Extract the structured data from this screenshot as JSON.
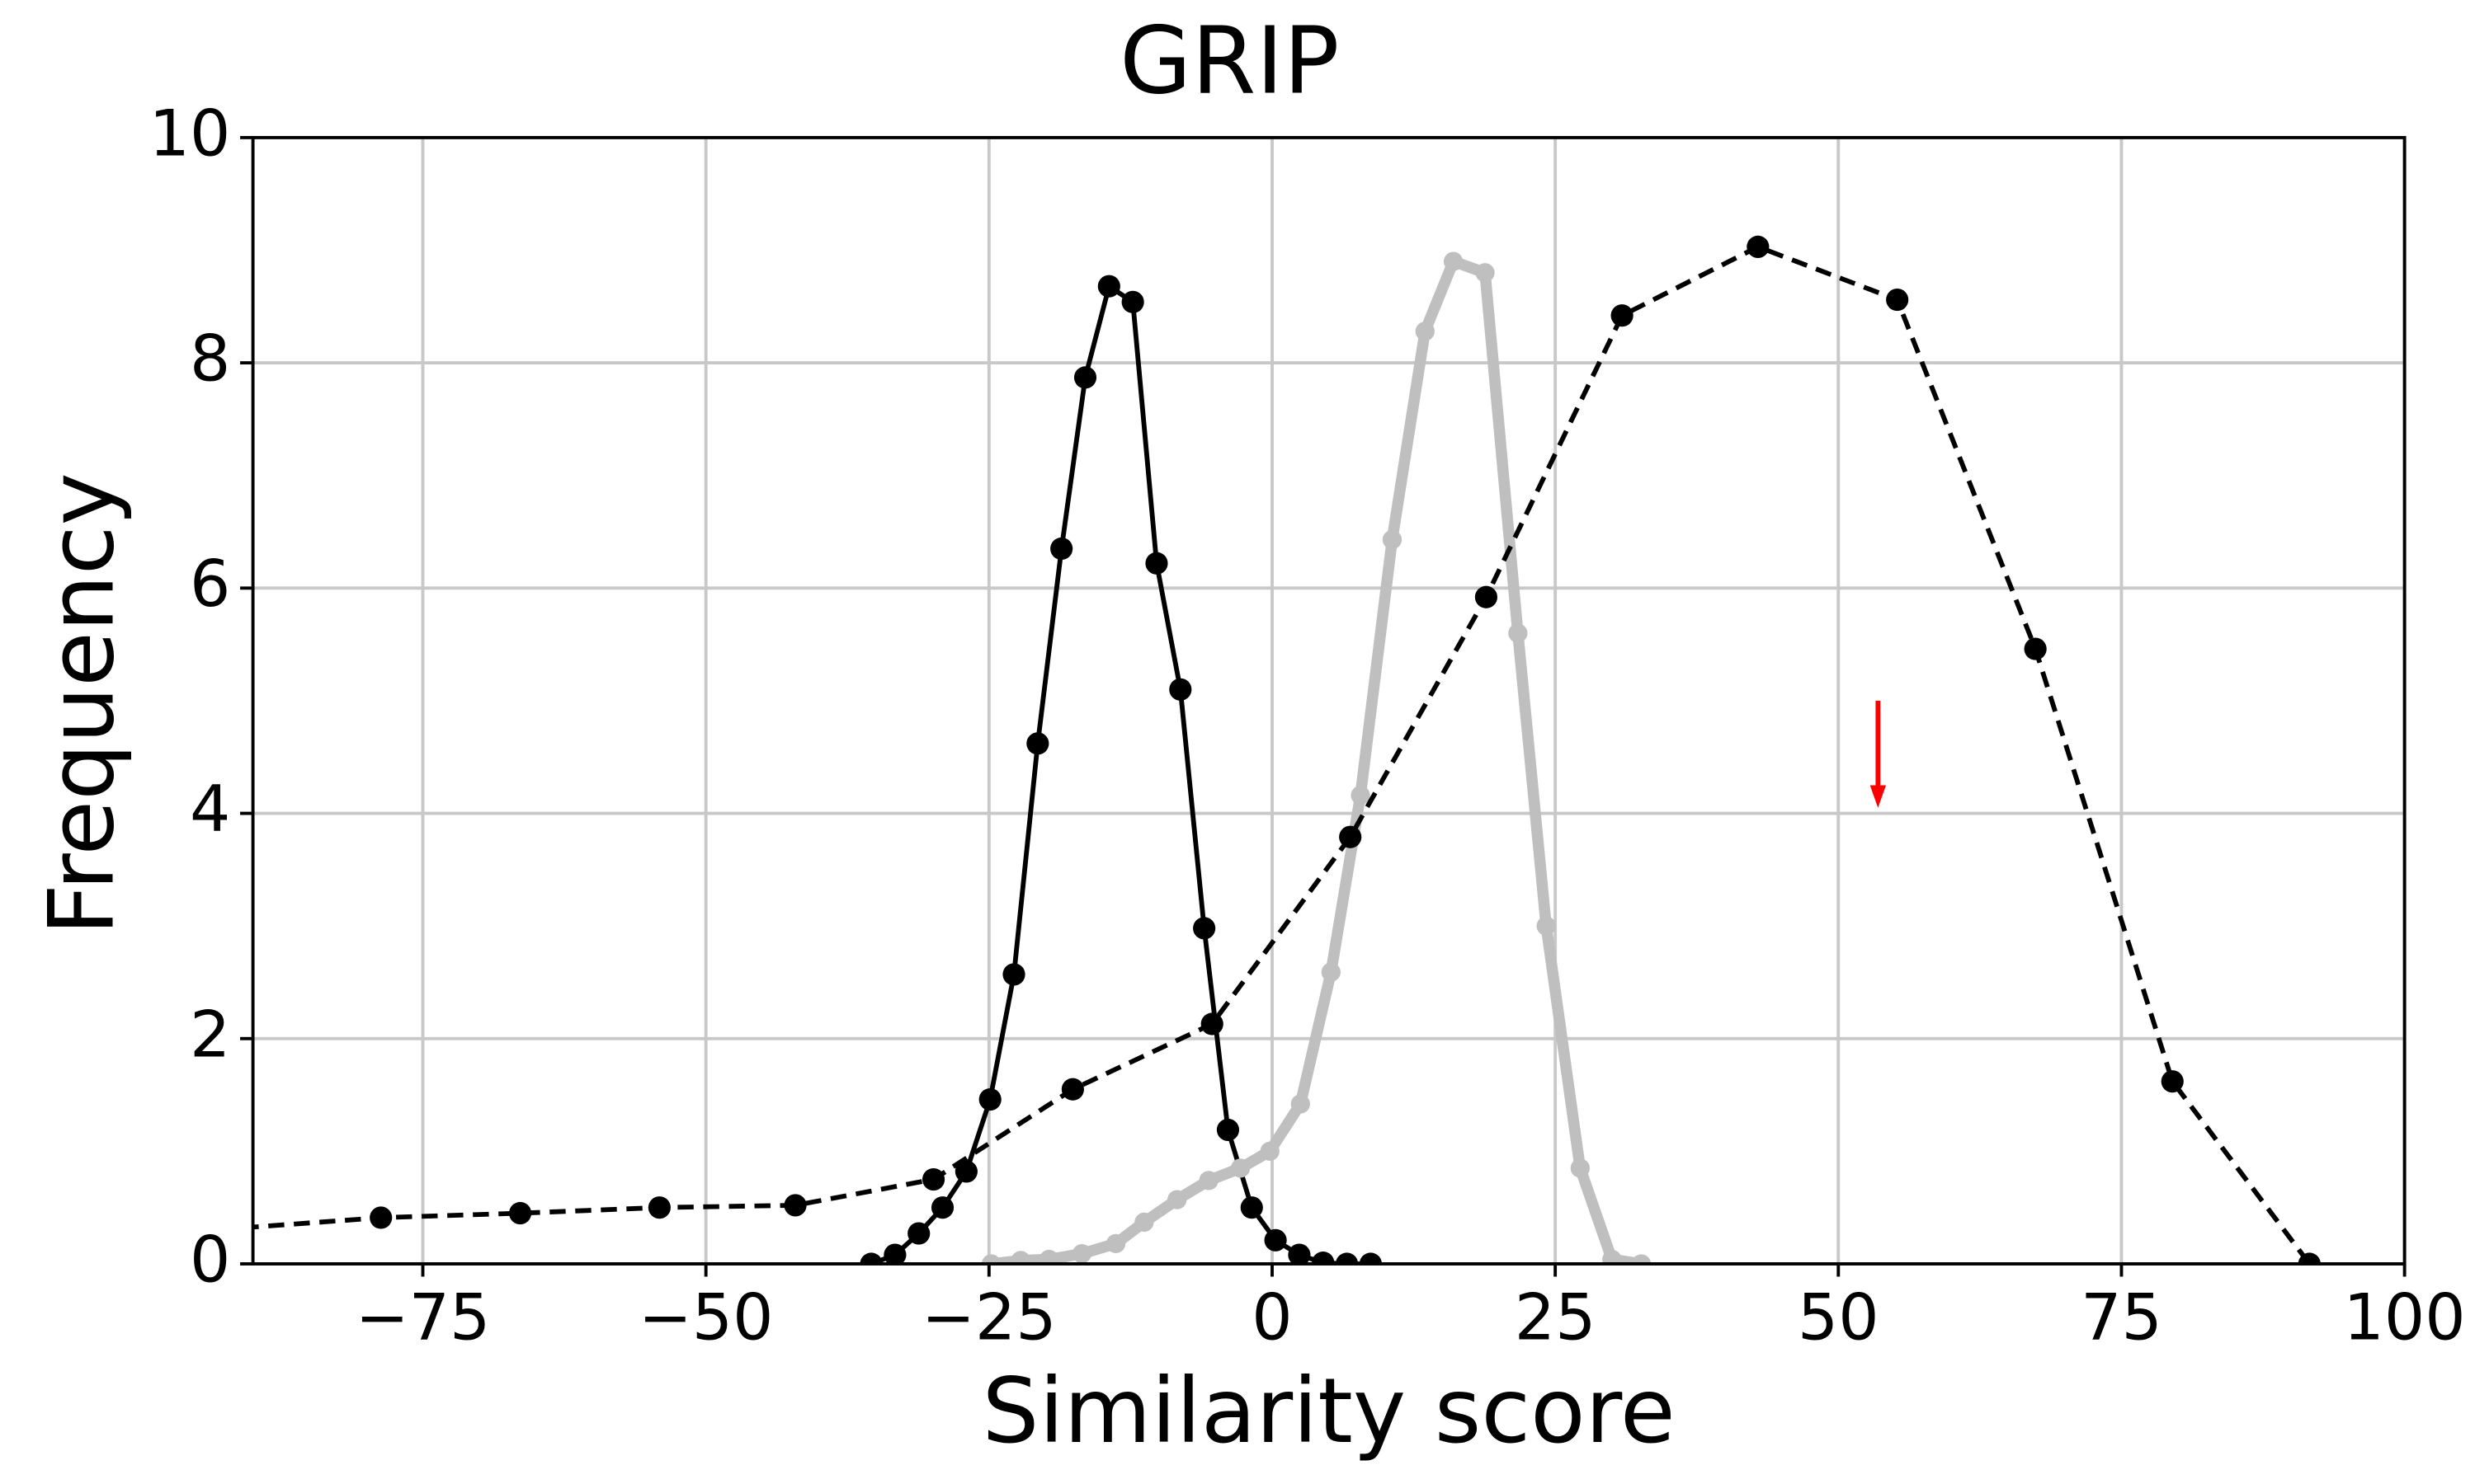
{
  "chart_data": {
    "type": "line",
    "title": "GRIP",
    "x_label": "Similarity score",
    "y_label": "Frequency",
    "xlim": [
      -90,
      100
    ],
    "ylim": [
      0,
      10
    ],
    "xticks": [
      {
        "value": -75,
        "label": "−75"
      },
      {
        "value": -50,
        "label": "−50"
      },
      {
        "value": -25,
        "label": "−25"
      },
      0,
      25,
      50,
      75,
      100
    ],
    "yticks": [
      0,
      2,
      4,
      6,
      8,
      10
    ],
    "grid": true,
    "series": [
      {
        "color": "#000000",
        "linestyle": "solid",
        "linewidth": 3,
        "marker_radius": 7,
        "x": [
          -35.4,
          -33.3,
          -31.2,
          -29.1,
          -27.0,
          -24.9,
          -22.8,
          -20.7,
          -18.6,
          -16.5,
          -14.4,
          -12.3,
          -10.2,
          -8.1,
          -6.0,
          -3.9,
          -1.8,
          0.3,
          2.4,
          4.5,
          6.6,
          8.7
        ],
        "values": [
          0,
          0.08,
          0.27,
          0.5,
          0.82,
          1.46,
          2.57,
          4.62,
          6.35,
          7.87,
          8.68,
          8.54,
          6.22,
          5.1,
          2.98,
          1.19,
          0.5,
          0.21,
          0.08,
          0.01,
          0,
          0
        ]
      },
      {
        "color": "#bfbfbf",
        "linestyle": "solid",
        "linewidth": 7,
        "marker_radius": 6,
        "x": [
          -24.8,
          -22.2,
          -19.7,
          -16.8,
          -13.8,
          -11.3,
          -8.4,
          -5.6,
          -2.8,
          -0.2,
          2.5,
          5.2,
          7.8,
          10.6,
          13.5,
          16.0,
          18.8,
          21.7,
          24.2,
          27.2,
          30.0,
          32.6
        ],
        "values": [
          0,
          0.03,
          0.04,
          0.09,
          0.18,
          0.37,
          0.57,
          0.74,
          0.85,
          1.0,
          1.42,
          2.59,
          4.16,
          6.43,
          8.28,
          8.9,
          8.8,
          5.6,
          3.0,
          0.85,
          0.04,
          0
        ]
      },
      {
        "color": "#000000",
        "linestyle": "dashed",
        "linewidth": 3,
        "marker_radius": 7,
        "x": [
          -90.9,
          -78.7,
          -66.4,
          -54.1,
          -42.1,
          -29.9,
          -17.6,
          -5.3,
          6.9,
          18.9,
          30.9,
          42.9,
          55.2,
          67.4,
          79.5,
          91.6
        ],
        "values": [
          0.32,
          0.41,
          0.45,
          0.5,
          0.52,
          0.75,
          1.55,
          2.13,
          3.79,
          5.92,
          8.42,
          9.03,
          8.56,
          5.46,
          1.62,
          0
        ]
      }
    ],
    "arrow": {
      "color": "#ff0000",
      "x": 53.5,
      "y_start": 5,
      "y_end": 4.05
    }
  }
}
